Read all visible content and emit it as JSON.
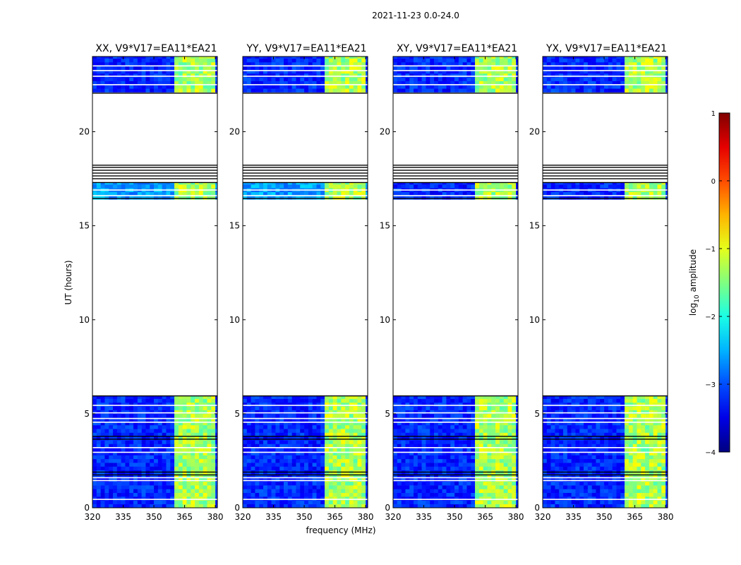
{
  "chart_data": {
    "type": "heatmap",
    "suptitle": "2021-11-23 0.0-24.0",
    "xlabel": "frequency (MHz)",
    "ylabel": "UT (hours)",
    "xlim": [
      320,
      381
    ],
    "ylim": [
      0,
      24
    ],
    "xticks": [
      320,
      335,
      350,
      365,
      380
    ],
    "yticks": [
      0,
      5,
      10,
      15,
      20
    ],
    "panels": [
      {
        "title": "XX, V9*V17=EA11*EA21"
      },
      {
        "title": "YY, V9*V17=EA11*EA21"
      },
      {
        "title": "XY, V9*V17=EA11*EA21"
      },
      {
        "title": "YX, V9*V17=EA11*EA21"
      }
    ],
    "colorbar": {
      "label": "log10 amplitude",
      "label_main": "log",
      "label_sub": "10",
      "label_rest": " amplitude",
      "range": [
        -4,
        1
      ],
      "ticks": [
        1,
        0,
        -1,
        -2,
        -3,
        -4
      ],
      "tick_labels": [
        "1",
        "0",
        "−1",
        "−2",
        "−3",
        "−4"
      ]
    },
    "data_segments_ut": [
      [
        0,
        5.95
      ],
      [
        16.4,
        17.3
      ],
      [
        22.1,
        24
      ]
    ],
    "gap_lines_ut": [
      17.5,
      17.65,
      17.8,
      17.95,
      18.1,
      18.22
    ],
    "strong_band_mhz": [
      [
        361,
        365.5
      ],
      [
        365.5,
        370
      ],
      [
        370.5,
        375
      ],
      [
        375.5,
        379.5
      ]
    ],
    "background_level": -3.2,
    "band_level": -1.3
  }
}
